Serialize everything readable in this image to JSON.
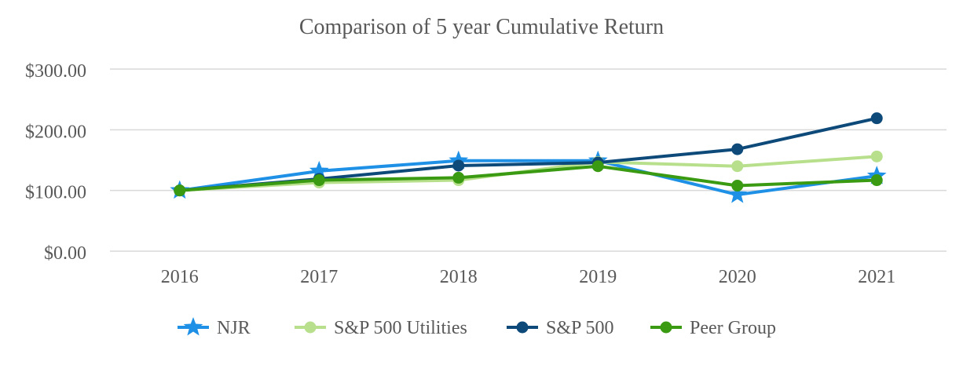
{
  "chart_data": {
    "type": "line",
    "title": "Comparison of 5 year Cumulative Return",
    "categories": [
      "2016",
      "2017",
      "2018",
      "2019",
      "2020",
      "2021"
    ],
    "y_ticks": [
      {
        "value": 0,
        "label": "$0.00"
      },
      {
        "value": 100,
        "label": "$100.00"
      },
      {
        "value": 200,
        "label": "$200.00"
      },
      {
        "value": 300,
        "label": "$300.00"
      }
    ],
    "ylim": [
      0,
      300
    ],
    "grid": true,
    "legend_position": "bottom",
    "series": [
      {
        "name": "NJR",
        "color": "#1e90e6",
        "marker": "star",
        "values": [
          100,
          132,
          149,
          149,
          93,
          124
        ]
      },
      {
        "name": "S&P 500 Utilities",
        "color": "#b8e08c",
        "marker": "circle",
        "values": [
          100,
          113,
          117,
          147,
          140,
          156
        ]
      },
      {
        "name": "S&P 500",
        "color": "#0d4a7a",
        "marker": "circle",
        "values": [
          100,
          119,
          141,
          146,
          168,
          219
        ]
      },
      {
        "name": "Peer Group",
        "color": "#3a9a12",
        "marker": "circle",
        "values": [
          100,
          117,
          121,
          140,
          108,
          117
        ]
      }
    ]
  }
}
